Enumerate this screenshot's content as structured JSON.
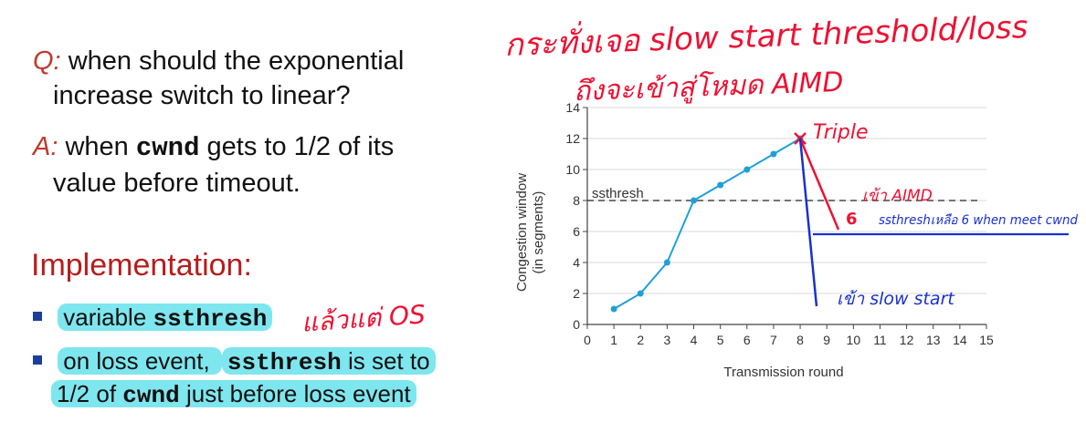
{
  "qa": {
    "q_prefix": "Q:",
    "q_text_1": "when should the exponential",
    "q_text_2": "increase switch to linear?",
    "a_prefix": "A:",
    "a_text_1a": "when",
    "a_code": "cwnd",
    "a_text_1b": "gets to 1/2 of its",
    "a_text_2": "value before timeout."
  },
  "implementation": {
    "title": "Implementation:",
    "bullet1_text": "variable",
    "bullet1_code": "ssthresh",
    "bullet2_text_a": "on loss event,",
    "bullet2_code": "ssthresh",
    "bullet2_text_b": "is set to",
    "bullet2_line2_a": "1/2 of",
    "bullet2_line2_code": "cwnd",
    "bullet2_line2_b": "just before loss event"
  },
  "annotations": {
    "os_note": "แล้วแต่ OS",
    "top_line1": "กระทั่งเจอ slow start threshold/loss",
    "top_line2": "ถึงจะเข้าสู่โหมด AIMD",
    "triple": "Triple",
    "six": "6",
    "enter_aimd": "เข้า AIMD",
    "ssthresh_six": "ssthreshเหลือ 6 when meet cwnd",
    "slow_start": "เข้า slow start"
  },
  "chart_data": {
    "type": "line",
    "xlabel": "Transmission round",
    "ylabel_line1": "Congestion window",
    "ylabel_line2": "(in segments)",
    "xlim": [
      0,
      15
    ],
    "ylim": [
      0,
      14
    ],
    "x_ticks": [
      0,
      1,
      2,
      3,
      4,
      5,
      6,
      7,
      8,
      9,
      10,
      11,
      12,
      13,
      14,
      15
    ],
    "y_ticks": [
      0,
      2,
      4,
      6,
      8,
      10,
      12,
      14
    ],
    "x": [
      1,
      2,
      3,
      4,
      5,
      6,
      7,
      8
    ],
    "values": [
      1,
      2,
      4,
      8,
      9,
      10,
      11,
      12
    ],
    "ssthresh_label": "ssthresh",
    "ssthresh_value": 8,
    "line_color": "#1fa0d8",
    "grid": true
  },
  "colors": {
    "red_ink": "#ee1133",
    "blue_ink": "#1a30d0",
    "highlight": "#7ee6ee"
  }
}
